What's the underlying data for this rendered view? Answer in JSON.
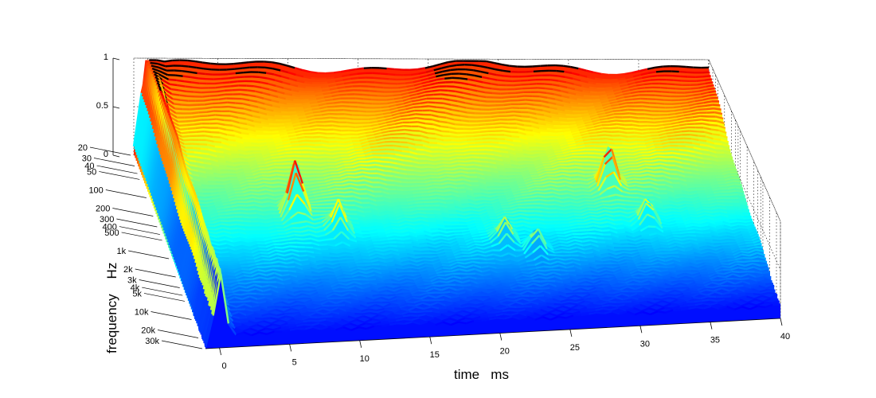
{
  "chart_data": {
    "type": "waterfall-3d-surface",
    "title": "",
    "xlabel": "time   ms",
    "ylabel": "frequency    Hz",
    "zlabel": "",
    "x_ticks": [
      "0",
      "5",
      "10",
      "15",
      "20",
      "25",
      "30",
      "35",
      "40"
    ],
    "y_ticks": [
      "20",
      "30",
      "40",
      "50",
      "100",
      "200",
      "300",
      "400",
      "500",
      "1k",
      "2k",
      "3k",
      "4k",
      "5k",
      "10k",
      "20k",
      "30k"
    ],
    "z_ticks": [
      "0",
      "0.5",
      "1"
    ],
    "xlim": [
      -1,
      40
    ],
    "ylim": [
      20,
      30000
    ],
    "zlim": [
      0,
      1
    ],
    "y_scale": "log",
    "colormap": "jet",
    "colormap_stops": [
      "#00008f",
      "#0000ff",
      "#0080ff",
      "#00ffff",
      "#80ff80",
      "#ffff00",
      "#ff8000",
      "#ff0000",
      "#800000"
    ],
    "grid": true,
    "dark_ridge_color": "#140000",
    "resonance_peaks": [
      {
        "time_ms": 7.8,
        "frequency_hz": 1000,
        "level": 0.55
      },
      {
        "time_ms": 10.5,
        "frequency_hz": 1800,
        "level": 0.32
      },
      {
        "time_ms": 22,
        "frequency_hz": 3000,
        "level": 0.25
      },
      {
        "time_ms": 24,
        "frequency_hz": 4000,
        "level": 0.25
      },
      {
        "time_ms": 30.5,
        "frequency_hz": 600,
        "level": 0.42
      },
      {
        "time_ms": 32.5,
        "frequency_hz": 1800,
        "level": 0.28
      }
    ]
  }
}
